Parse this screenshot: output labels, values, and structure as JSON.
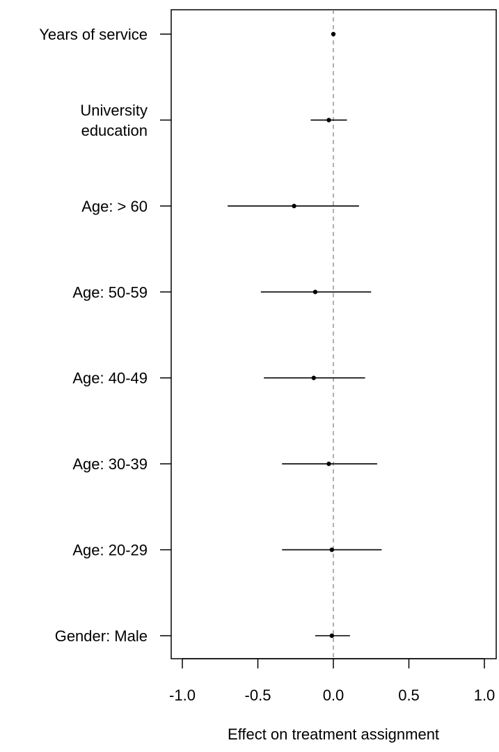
{
  "chart_data": {
    "type": "forest",
    "title": "",
    "xlabel": "Effect on treatment assignment",
    "ylabel": "",
    "xlim": [
      -1.0,
      1.0
    ],
    "xticks": [
      -1.0,
      -0.5,
      0.0,
      0.5,
      1.0
    ],
    "xtick_labels": [
      "-1.0",
      "-0.5",
      "0.0",
      "0.5",
      "1.0"
    ],
    "reference_line": 0.0,
    "reference_line_style": "dashed",
    "grid": false,
    "legend": "none",
    "colors": {
      "points": "#000000",
      "intervals": "#000000",
      "reference_line": "#7a7a7a",
      "axes": "#000000"
    },
    "rows": [
      {
        "label_lines": [
          "Years of service"
        ],
        "estimate": 0.0,
        "lower": 0.0,
        "upper": 0.0
      },
      {
        "label_lines": [
          "University",
          "education"
        ],
        "estimate": -0.03,
        "lower": -0.15,
        "upper": 0.09
      },
      {
        "label_lines": [
          "Age: > 60"
        ],
        "estimate": -0.26,
        "lower": -0.7,
        "upper": 0.17
      },
      {
        "label_lines": [
          "Age: 50-59"
        ],
        "estimate": -0.12,
        "lower": -0.48,
        "upper": 0.25
      },
      {
        "label_lines": [
          "Age: 40-49"
        ],
        "estimate": -0.13,
        "lower": -0.46,
        "upper": 0.21
      },
      {
        "label_lines": [
          "Age: 30-39"
        ],
        "estimate": -0.03,
        "lower": -0.34,
        "upper": 0.29
      },
      {
        "label_lines": [
          "Age: 20-29"
        ],
        "estimate": -0.01,
        "lower": -0.34,
        "upper": 0.32
      },
      {
        "label_lines": [
          "Gender: Male"
        ],
        "estimate": -0.01,
        "lower": -0.12,
        "upper": 0.11
      }
    ]
  }
}
